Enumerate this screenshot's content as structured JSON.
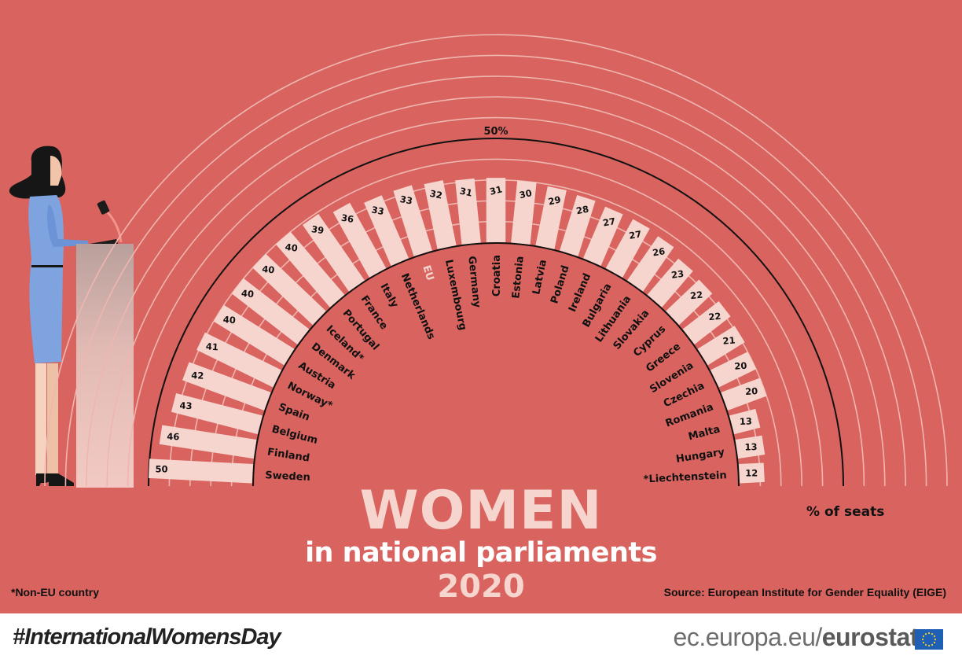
{
  "title": {
    "main": "WOMEN",
    "subtitle": "in national parliaments",
    "year": "2020"
  },
  "axis": {
    "reference_label": "50%",
    "unit_label": "% of seats"
  },
  "footnote": "*Non-EU country",
  "source": "Source: European Institute for Gender Equality (EIGE)",
  "footer": {
    "hashtag": "#InternationalWomensDay",
    "brand_prefix": "ec.europa.eu/",
    "brand_name": "eurostat"
  },
  "colors": {
    "background": "#d9645f",
    "bar": "#f6d5cf",
    "eu_label": "#f6d5cf",
    "reference_arc": "#111111",
    "grid_arc": "#efb6b0",
    "text": "#111111"
  },
  "chart_data": {
    "type": "bar",
    "layout": "radial-semicircle",
    "title": "WOMEN in national parliaments 2020",
    "xlabel": "",
    "ylabel": "% of seats",
    "ylim": [
      0,
      100
    ],
    "reference_line": 50,
    "grid": true,
    "categories": [
      "Sweden",
      "Finland",
      "Belgium",
      "Spain",
      "Norway*",
      "Austria",
      "Denmark",
      "Iceland*",
      "Portugal",
      "France",
      "Italy",
      "Netherlands",
      "EU",
      "Luxembourg",
      "Germany",
      "Croatia",
      "Estonia",
      "Latvia",
      "Poland",
      "Ireland",
      "Bulgaria",
      "Lithuania",
      "Slovakia",
      "Cyprus",
      "Greece",
      "Slovenia",
      "Czechia",
      "Romania",
      "Malta",
      "Hungary",
      "*Liechtenstein"
    ],
    "values": [
      50,
      46,
      43,
      42,
      41,
      40,
      40,
      40,
      40,
      39,
      36,
      33,
      33,
      32,
      31,
      31,
      30,
      29,
      28,
      27,
      27,
      26,
      23,
      22,
      22,
      21,
      20,
      20,
      13,
      13,
      12
    ],
    "non_eu": [
      "Norway*",
      "Iceland*",
      "*Liechtenstein"
    ],
    "highlight": "EU"
  }
}
